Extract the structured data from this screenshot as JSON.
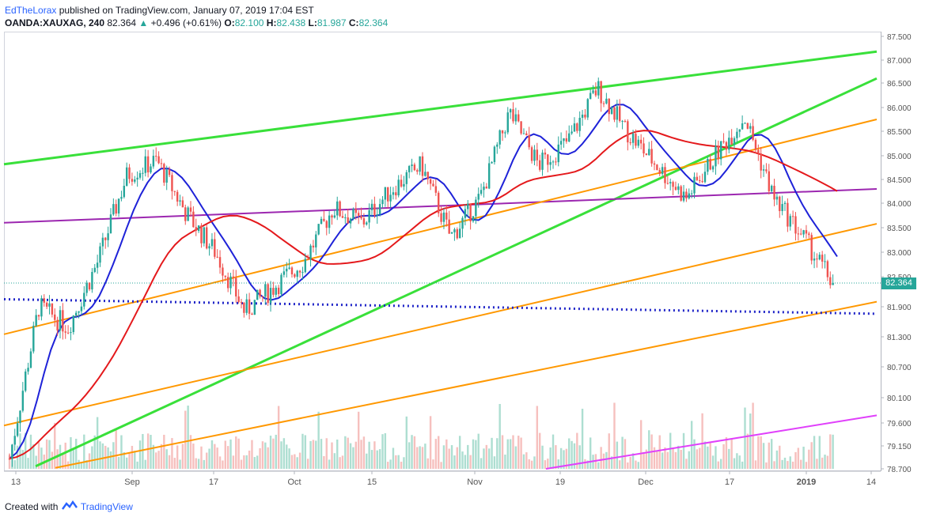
{
  "header": {
    "author": "EdTheLorax",
    "published_text": "published on TradingView.com, January 07, 2019 17:04 EST",
    "symbol": "OANDA:XAUXAG, 240",
    "last": "82.364",
    "change_arrow": "▲",
    "change": "+0.496 (+0.61%)",
    "o_label": "O:",
    "o_value": "82.100",
    "h_label": "H:",
    "h_value": "82.438",
    "l_label": "L:",
    "l_value": "81.987",
    "c_label": "C:",
    "c_value": "82.364"
  },
  "footer": {
    "created_with": "Created with",
    "brand": "TradingView"
  },
  "colors": {
    "up_candle": "#26a69a",
    "down_candle": "#ef5350",
    "green_trend": "#39e03a",
    "orange_channel": "#ff9800",
    "purple_line": "#9c27b0",
    "magenta_line": "#e040fb",
    "blue_ma": "#1e22d8",
    "red_ma": "#e4191c",
    "dotted_blue": "#1f24c8"
  },
  "chart_data": {
    "type": "candlestick",
    "title": "OANDA:XAUXAG, 240",
    "y_ticks": [
      "87.500",
      "87.000",
      "86.500",
      "86.000",
      "85.500",
      "85.000",
      "84.500",
      "84.000",
      "83.500",
      "83.000",
      "82.500",
      "81.900",
      "81.300",
      "80.700",
      "80.100",
      "79.600",
      "79.150",
      "78.700"
    ],
    "x_ticks": [
      "13",
      "Sep",
      "17",
      "Oct",
      "15",
      "Nov",
      "19",
      "Dec",
      "17",
      "2019",
      "14"
    ],
    "last_price": "82.364",
    "close_path": [
      {
        "t": "13",
        "v": 78.9
      },
      {
        "t": "mid-Aug",
        "v": 81.9
      },
      {
        "t": "late-Aug",
        "v": 81.5
      },
      {
        "t": "Sep",
        "v": 82.8
      },
      {
        "t": "early-Sep",
        "v": 84.6
      },
      {
        "t": "17",
        "v": 84.9
      },
      {
        "t": "late-Sep",
        "v": 83.8
      },
      {
        "t": "end-Sep",
        "v": 83.0
      },
      {
        "t": "Oct",
        "v": 81.8
      },
      {
        "t": "early-Oct",
        "v": 82.3
      },
      {
        "t": "mid-Oct",
        "v": 82.8
      },
      {
        "t": "15",
        "v": 83.9
      },
      {
        "t": "late-Oct",
        "v": 83.6
      },
      {
        "t": "end-Oct",
        "v": 84.3
      },
      {
        "t": "Nov",
        "v": 84.8
      },
      {
        "t": "early-Nov",
        "v": 83.3
      },
      {
        "t": "mid-Nov",
        "v": 84.1
      },
      {
        "t": "19",
        "v": 85.9
      },
      {
        "t": "late-Nov",
        "v": 84.8
      },
      {
        "t": "end-Nov",
        "v": 85.3
      },
      {
        "t": "Dec",
        "v": 86.4
      },
      {
        "t": "early-Dec",
        "v": 85.5
      },
      {
        "t": "mid-Dec",
        "v": 84.8
      },
      {
        "t": "17",
        "v": 84.1
      },
      {
        "t": "late-Dec",
        "v": 85.0
      },
      {
        "t": "end-Dec",
        "v": 85.8
      },
      {
        "t": "2019",
        "v": 84.1
      },
      {
        "t": "early-Jan",
        "v": 83.3
      },
      {
        "t": "Jan 07",
        "v": 82.364
      }
    ]
  }
}
